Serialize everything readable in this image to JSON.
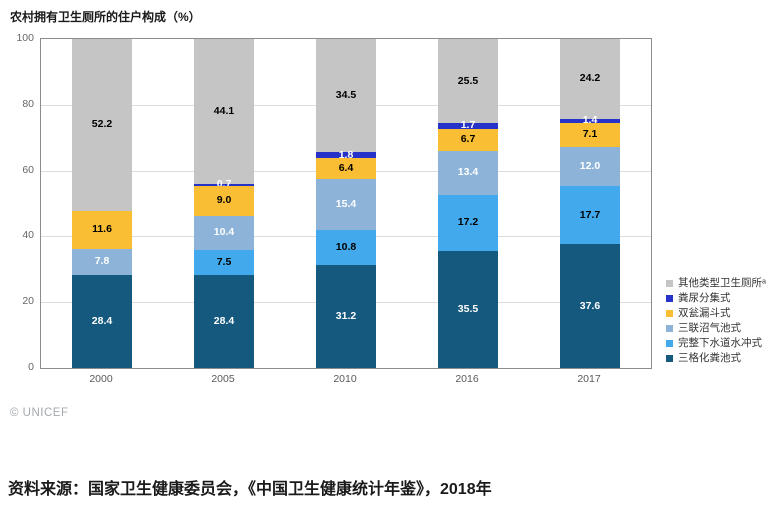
{
  "title": "农村拥有卫生厕所的住户构成（%）",
  "credit": "© UNICEF",
  "source": "资料来源：国家卫生健康委员会，《中国卫生健康统计年鉴》，2018年",
  "chart_data": {
    "type": "bar",
    "stacked": true,
    "title": "农村拥有卫生厕所的住户构成（%）",
    "xlabel": "",
    "ylabel": "",
    "ylim": [
      0,
      100
    ],
    "yticks": [
      0,
      20,
      40,
      60,
      80,
      100
    ],
    "grid": true,
    "legend_position": "right",
    "categories": [
      "2000",
      "2005",
      "2010",
      "2016",
      "2017"
    ],
    "series": [
      {
        "name": "三格化粪池式",
        "color": "#15597E",
        "label_color": "#FFFFFF",
        "values": [
          "28.4",
          "28.4",
          "31.2",
          "35.5",
          "37.6"
        ]
      },
      {
        "name": "完整下水道水冲式",
        "color": "#41A9EC",
        "label_color": "#000000",
        "values": [
          null,
          "7.5",
          "10.8",
          "17.2",
          "17.7"
        ]
      },
      {
        "name": "三联沼气池式",
        "color": "#8DB4D8",
        "label_color": "#FFFFFF",
        "values": [
          "7.8",
          "10.4",
          "15.4",
          "13.4",
          "12.0"
        ]
      },
      {
        "name": "双瓮漏斗式",
        "color": "#F9BE33",
        "label_color": "#000000",
        "values": [
          "11.6",
          "9.0",
          "6.4",
          "6.7",
          "7.1"
        ]
      },
      {
        "name": "粪尿分集式",
        "color": "#2632C8",
        "label_color": "#FFFFFF",
        "values": [
          null,
          "0.7",
          "1.8",
          "1.7",
          "1.4"
        ]
      },
      {
        "name": "其他类型卫生厕所ᵃ",
        "color": "#C5C5C5",
        "label_color": "#000000",
        "values": [
          "52.2",
          "44.1",
          "34.5",
          "25.5",
          "24.2"
        ]
      }
    ]
  }
}
